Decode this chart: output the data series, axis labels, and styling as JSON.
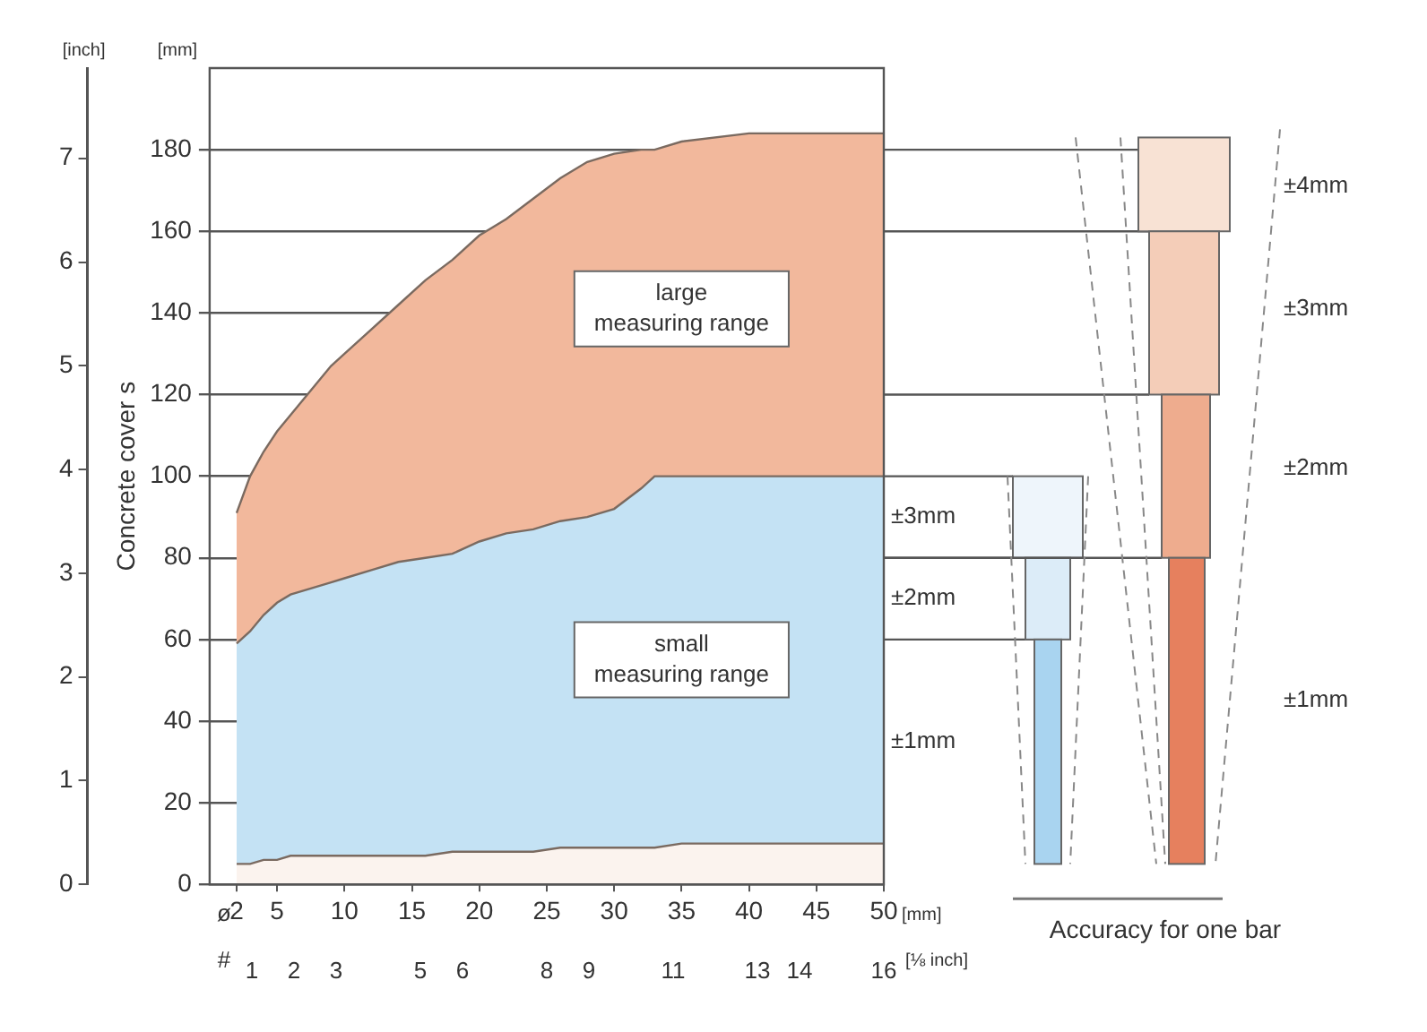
{
  "chart_data": {
    "type": "area",
    "ylabel": "Concrete cover s",
    "y2label": "[inch]",
    "xlabel": "[mm]",
    "x2label": "[⅛ inch]",
    "x": [
      2,
      3,
      4,
      5,
      6,
      7,
      8,
      9,
      10,
      12,
      14,
      16,
      18,
      20,
      22,
      24,
      26,
      28,
      30,
      32,
      33,
      35,
      40,
      45,
      50
    ],
    "stacked": true,
    "series": [
      {
        "color": "#fbf3ee",
        "values": [
          5,
          5,
          6,
          6,
          7,
          7,
          7,
          7,
          7,
          7,
          7,
          7,
          8,
          8,
          8,
          8,
          9,
          9,
          9,
          9,
          9,
          10,
          10,
          10,
          10
        ]
      },
      {
        "name": "small measuring range",
        "color": "#c4e2f4",
        "values": [
          54,
          57,
          60,
          63,
          64,
          65,
          66,
          67,
          68,
          70,
          72,
          73,
          73,
          76,
          78,
          79,
          80,
          81,
          83,
          88,
          91,
          90,
          90,
          90,
          90
        ]
      },
      {
        "name": "large measuring range",
        "color": "#f2b89c",
        "values": [
          32,
          38,
          40,
          42,
          44,
          47,
          50,
          53,
          55,
          59,
          63,
          68,
          72,
          75,
          77,
          81,
          84,
          87,
          87,
          83,
          80,
          82,
          84,
          84,
          84
        ]
      }
    ],
    "xlim": [
      0,
      50
    ],
    "xticks": [
      2,
      5,
      10,
      15,
      20,
      25,
      30,
      35,
      40,
      45,
      50
    ],
    "x2lim": [
      0,
      16
    ],
    "x2ticks": [
      1,
      2,
      3,
      5,
      6,
      8,
      9,
      11,
      13,
      14,
      16
    ],
    "ylim": [
      0,
      200
    ],
    "yticks": [
      0,
      20,
      40,
      60,
      80,
      100,
      120,
      140,
      160,
      180
    ],
    "y2lim": [
      0,
      7.87
    ],
    "y2ticks": [
      0,
      1,
      2,
      3,
      4,
      5,
      6,
      7
    ],
    "grid": "y",
    "annotations": [
      "[mm]",
      "ø",
      "#",
      "Accuracy for one bar",
      "±4mm",
      "±3mm",
      "±2mm",
      "±1mm",
      "±3mm",
      "±2mm",
      "±1mm"
    ]
  }
}
